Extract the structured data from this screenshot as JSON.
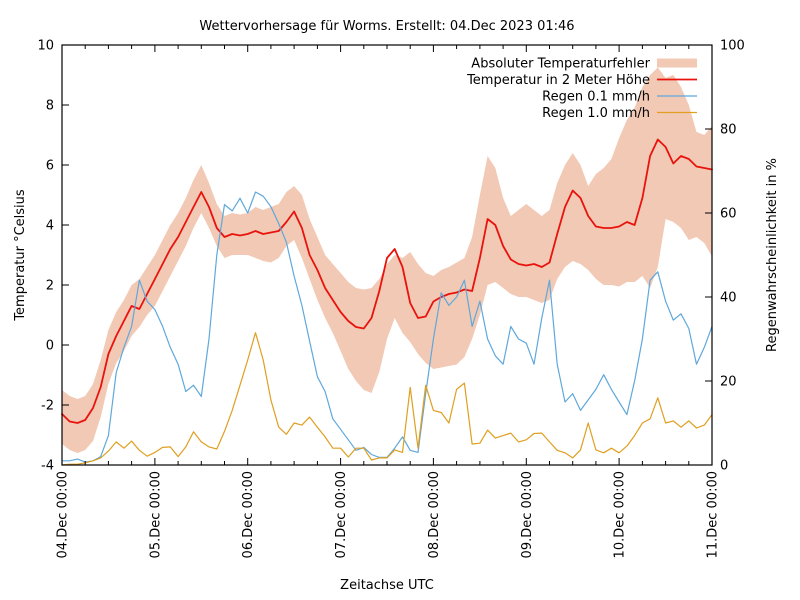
{
  "title": "Wettervorhersage für Worms. Erstellt: 04.Dec 2023 01:46",
  "chart_data": {
    "type": "line",
    "title": "Wettervorhersage für Worms. Erstellt: 04.Dec 2023 01:46",
    "xlabel": "Zeitachse UTC",
    "ylabel_left": "Temperatur °Celsius",
    "ylabel_right": "Regenwahrscheinlichkeit in %",
    "ylim_left": [
      -4,
      10
    ],
    "ylim_right": [
      0,
      100
    ],
    "y_ticks_left": [
      -4,
      -2,
      0,
      2,
      4,
      6,
      8,
      10
    ],
    "y_ticks_right": [
      0,
      20,
      40,
      60,
      80,
      100
    ],
    "x_range_hours": [
      0,
      168
    ],
    "x_minor_tick_hours": 6,
    "x_major_tick_hours": 24,
    "x_tick_labels": [
      "04.Dec 00:00",
      "05.Dec 00:00",
      "06.Dec 00:00",
      "07.Dec 00:00",
      "08.Dec 00:00",
      "09.Dec 00:00",
      "10.Dec 00:00",
      "11.Dec 00:00"
    ],
    "grid": false,
    "legend_position": "top-right-inside",
    "hours_step": 2,
    "colors": {
      "band": "#f2c9b4",
      "temperature": "#e8130d",
      "rain01": "#5fa8dc",
      "rain10": "#df9f20",
      "axis": "#000000"
    },
    "series": [
      {
        "name": "Absoluter Temperaturfehler",
        "type": "band",
        "axis": "left",
        "color": "#f2c9b4",
        "upper": [
          -1.5,
          -1.7,
          -1.8,
          -1.7,
          -1.3,
          -0.5,
          0.5,
          1.1,
          1.5,
          2.0,
          2.2,
          2.6,
          3.0,
          3.5,
          4.0,
          4.4,
          4.9,
          5.5,
          6.0,
          5.4,
          4.7,
          4.3,
          4.4,
          4.35,
          4.4,
          4.6,
          4.5,
          4.6,
          4.7,
          5.1,
          5.3,
          5.0,
          4.2,
          3.6,
          3.0,
          2.7,
          2.4,
          2.1,
          1.9,
          1.85,
          1.9,
          2.2,
          2.7,
          3.0,
          2.9,
          3.1,
          2.7,
          2.4,
          2.3,
          2.5,
          2.6,
          2.75,
          2.9,
          3.6,
          5.0,
          6.3,
          5.9,
          4.9,
          4.3,
          4.5,
          4.7,
          4.5,
          4.3,
          4.5,
          5.4,
          6.0,
          6.4,
          6.0,
          5.3,
          5.7,
          5.9,
          6.2,
          6.9,
          7.5,
          7.9,
          8.6,
          9.0,
          9.25,
          8.9,
          9.0,
          8.6,
          8.0,
          7.1,
          7.0,
          7.3
        ],
        "lower": [
          -3.3,
          -3.5,
          -3.6,
          -3.5,
          -3.2,
          -2.4,
          -1.3,
          -0.6,
          -0.2,
          0.3,
          0.6,
          1.0,
          1.3,
          1.8,
          2.3,
          2.8,
          3.3,
          3.9,
          4.4,
          3.9,
          3.3,
          2.9,
          3.0,
          3.0,
          3.0,
          2.9,
          2.8,
          2.75,
          2.9,
          3.3,
          3.5,
          2.9,
          2.2,
          1.5,
          0.9,
          0.4,
          -0.2,
          -0.8,
          -1.2,
          -1.5,
          -1.6,
          -0.9,
          0.2,
          0.9,
          0.4,
          0.1,
          -0.3,
          -0.6,
          -0.8,
          -0.75,
          -0.7,
          -0.65,
          -0.4,
          0.2,
          1.0,
          2.0,
          2.1,
          1.9,
          1.7,
          1.6,
          1.6,
          1.5,
          1.4,
          1.5,
          2.2,
          2.6,
          2.8,
          2.7,
          2.5,
          2.2,
          2.0,
          2.0,
          1.95,
          2.1,
          2.1,
          2.3,
          1.9,
          2.6,
          4.2,
          4.1,
          3.9,
          3.5,
          3.6,
          3.4,
          2.95
        ]
      },
      {
        "name": "Temperatur in 2 Meter Höhe",
        "type": "line",
        "axis": "left",
        "color": "#e8130d",
        "values": [
          -2.3,
          -2.55,
          -2.6,
          -2.5,
          -2.1,
          -1.4,
          -0.3,
          0.3,
          0.8,
          1.3,
          1.2,
          1.7,
          2.2,
          2.7,
          3.2,
          3.6,
          4.1,
          4.6,
          5.1,
          4.6,
          3.9,
          3.6,
          3.7,
          3.65,
          3.7,
          3.8,
          3.7,
          3.75,
          3.8,
          4.1,
          4.45,
          3.9,
          3.0,
          2.5,
          1.9,
          1.5,
          1.1,
          0.8,
          0.6,
          0.55,
          0.9,
          1.8,
          2.9,
          3.2,
          2.6,
          1.4,
          0.9,
          0.95,
          1.45,
          1.6,
          1.7,
          1.75,
          1.85,
          1.8,
          2.9,
          4.2,
          4.0,
          3.3,
          2.85,
          2.7,
          2.65,
          2.7,
          2.6,
          2.75,
          3.7,
          4.6,
          5.15,
          4.9,
          4.3,
          3.95,
          3.9,
          3.9,
          3.95,
          4.1,
          4.0,
          4.9,
          6.3,
          6.85,
          6.6,
          6.05,
          6.3,
          6.2,
          5.95,
          5.9,
          5.85
        ]
      },
      {
        "name": "Regen 0.1 mm/h",
        "type": "line",
        "axis": "right",
        "color": "#5fa8dc",
        "values": [
          1,
          1,
          1.4,
          0.7,
          1,
          2,
          7,
          22,
          28,
          33,
          44,
          39,
          37,
          33,
          28,
          24,
          17.5,
          19,
          16.3,
          30,
          50,
          62,
          60.5,
          63.5,
          60,
          65,
          64,
          61.5,
          57.5,
          53,
          45,
          38,
          29.5,
          21,
          17.5,
          11,
          8.5,
          6,
          3.5,
          4.2,
          2.5,
          1.8,
          1.8,
          4,
          6.7,
          3.5,
          3,
          17,
          30,
          41,
          38,
          40,
          44,
          33,
          39,
          30,
          26,
          24,
          33,
          30,
          29,
          24,
          35,
          44,
          24,
          15,
          17,
          13,
          15.5,
          18,
          21.5,
          18,
          15,
          12,
          20,
          30,
          44,
          46,
          39,
          34.5,
          36,
          32.5,
          24,
          28,
          33
        ]
      },
      {
        "name": "Regen 1.0 mm/h",
        "type": "line",
        "axis": "right",
        "color": "#df9f20",
        "values": [
          0,
          0.2,
          0.2,
          0.5,
          1,
          1.7,
          3.3,
          5.5,
          4,
          5.7,
          3.5,
          2.1,
          3,
          4.2,
          4.3,
          2,
          4.3,
          7.9,
          5.5,
          4.3,
          3.8,
          8,
          13,
          19,
          25,
          31.5,
          25,
          15.5,
          9,
          7.3,
          10,
          9.5,
          11.4,
          9,
          6.7,
          4,
          4,
          1.9,
          4,
          4,
          1.2,
          1.7,
          1.7,
          3.6,
          3,
          18.5,
          4,
          19,
          13,
          12.5,
          10,
          18,
          19.5,
          5,
          5.2,
          8.3,
          6.4,
          7,
          7.6,
          5.5,
          6,
          7.5,
          7.6,
          5.5,
          3.5,
          2.9,
          1.7,
          3.6,
          10,
          3.6,
          2.9,
          4,
          2.9,
          4.5,
          7,
          10,
          11,
          16,
          10,
          10.5,
          9,
          10.5,
          8.8,
          9.5,
          12
        ]
      }
    ]
  }
}
